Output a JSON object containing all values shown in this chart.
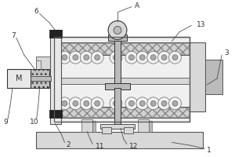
{
  "bg_color": "#ffffff",
  "ec": "#555555",
  "dc": "#333333",
  "lgray": "#d8d8d8",
  "mgray": "#bbbbbb",
  "dgray": "#999999",
  "hatch_gray": "#cccccc",
  "figsize": [
    3.0,
    2.0
  ],
  "dpi": 100,
  "ann_color": "#444444",
  "ann_lw": 0.55,
  "fs": 6.5
}
